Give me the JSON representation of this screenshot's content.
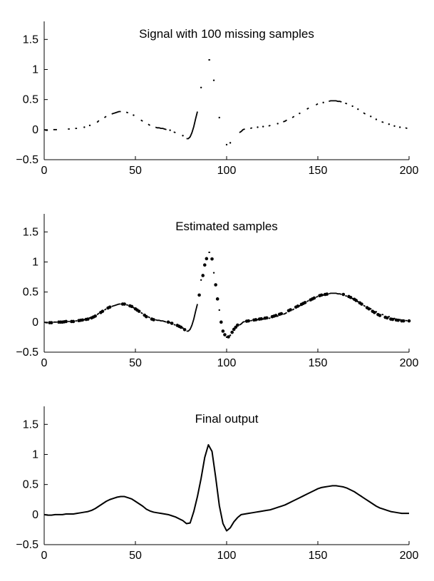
{
  "chart_data": [
    {
      "type": "line",
      "title": "Signal with 100 missing samples",
      "xlabel": "",
      "ylabel": "",
      "xlim": [
        0,
        200
      ],
      "ylim": [
        -0.5,
        1.8
      ],
      "x_ticks": [
        "0",
        "50",
        "100",
        "150",
        "200"
      ],
      "y_ticks": [
        "−0.5",
        "0",
        "0.5",
        "1",
        "1.5"
      ],
      "grid": false,
      "legend": "none",
      "series": [
        {
          "style": "segments",
          "segments": [
            [
              [
                0,
                0.0
              ],
              [
                1,
                -0.01
              ],
              [
                2,
                -0.01
              ]
            ],
            [
              [
                5,
                0.0
              ],
              [
                6,
                0.0
              ],
              [
                7,
                0.0
              ]
            ],
            [
              [
                13,
                0.01
              ],
              [
                14,
                0.01
              ]
            ],
            [
              [
                17,
                0.02
              ],
              [
                18,
                0.02
              ]
            ],
            [
              [
                22,
                0.04
              ]
            ],
            [
              [
                25,
                0.07
              ]
            ],
            [
              [
                29,
                0.12
              ],
              [
                30,
                0.15
              ]
            ],
            [
              [
                33,
                0.2
              ],
              [
                34,
                0.22
              ]
            ],
            [
              [
                37,
                0.26
              ],
              [
                38,
                0.27
              ],
              [
                39,
                0.28
              ],
              [
                40,
                0.29
              ],
              [
                41,
                0.3
              ],
              [
                42,
                0.3
              ]
            ],
            [
              [
                45,
                0.29
              ],
              [
                46,
                0.28
              ]
            ],
            [
              [
                49,
                0.24
              ]
            ],
            [
              [
                53,
                0.16
              ],
              [
                54,
                0.14
              ]
            ],
            [
              [
                57,
                0.09
              ],
              [
                58,
                0.07
              ]
            ],
            [
              [
                61,
                0.04
              ],
              [
                62,
                0.03
              ],
              [
                63,
                0.03
              ],
              [
                64,
                0.02
              ],
              [
                65,
                0.02
              ],
              [
                66,
                0.01
              ],
              [
                67,
                0.0
              ]
            ],
            [
              [
                69,
                -0.01
              ]
            ],
            [
              [
                71,
                -0.04
              ],
              [
                72,
                -0.05
              ]
            ],
            [
              [
                76,
                -0.1
              ]
            ],
            [
              [
                78,
                -0.15
              ],
              [
                79,
                -0.15
              ],
              [
                80,
                -0.12
              ],
              [
                81,
                -0.05
              ],
              [
                82,
                0.05
              ],
              [
                83,
                0.18
              ],
              [
                84,
                0.3
              ]
            ],
            [
              [
                86,
                0.7
              ]
            ],
            [
              [
                90,
                1.16
              ],
              [
                91,
                1.16
              ]
            ],
            [
              [
                93,
                0.82
              ]
            ],
            [
              [
                96,
                0.2
              ]
            ],
            [
              [
                100,
                -0.25
              ]
            ],
            [
              [
                102,
                -0.22
              ]
            ],
            [
              [
                107,
                -0.05
              ],
              [
                108,
                -0.03
              ],
              [
                109,
                0.0
              ],
              [
                110,
                0.01
              ]
            ],
            [
              [
                113,
                0.02
              ],
              [
                114,
                0.03
              ]
            ],
            [
              [
                117,
                0.04
              ]
            ],
            [
              [
                120,
                0.05
              ]
            ],
            [
              [
                123,
                0.06
              ],
              [
                124,
                0.07
              ]
            ],
            [
              [
                128,
                0.1
              ]
            ],
            [
              [
                131,
                0.13
              ],
              [
                132,
                0.14
              ],
              [
                133,
                0.16
              ]
            ],
            [
              [
                136,
                0.2
              ],
              [
                137,
                0.22
              ]
            ],
            [
              [
                140,
                0.27
              ]
            ],
            [
              [
                144,
                0.34
              ],
              [
                145,
                0.36
              ]
            ],
            [
              [
                149,
                0.41
              ],
              [
                150,
                0.43
              ]
            ],
            [
              [
                153,
                0.45
              ]
            ],
            [
              [
                156,
                0.47
              ],
              [
                157,
                0.48
              ],
              [
                158,
                0.48
              ],
              [
                159,
                0.48
              ],
              [
                160,
                0.48
              ],
              [
                161,
                0.47
              ],
              [
                162,
                0.47
              ],
              [
                163,
                0.46
              ]
            ],
            [
              [
                165,
                0.44
              ],
              [
                166,
                0.43
              ]
            ],
            [
              [
                169,
                0.39
              ]
            ],
            [
              [
                172,
                0.34
              ]
            ],
            [
              [
                175,
                0.28
              ],
              [
                176,
                0.26
              ]
            ],
            [
              [
                179,
                0.22
              ]
            ],
            [
              [
                182,
                0.17
              ]
            ],
            [
              [
                185,
                0.13
              ],
              [
                186,
                0.12
              ]
            ],
            [
              [
                189,
                0.09
              ]
            ],
            [
              [
                192,
                0.06
              ]
            ],
            [
              [
                195,
                0.04
              ]
            ],
            [
              [
                198,
                0.03
              ],
              [
                199,
                0.02
              ]
            ]
          ]
        }
      ]
    },
    {
      "type": "line",
      "title": "Estimated samples",
      "xlabel": "",
      "ylabel": "",
      "xlim": [
        0,
        200
      ],
      "ylim": [
        -0.5,
        1.8
      ],
      "x_ticks": [
        "0",
        "50",
        "100",
        "150",
        "200"
      ],
      "y_ticks": [
        "−0.5",
        "0",
        "0.5",
        "1",
        "1.5"
      ],
      "grid": false,
      "legend": "none",
      "series": [
        {
          "style": "segments-with-estimated-dots",
          "source_panel": 0
        }
      ]
    },
    {
      "type": "line",
      "title": "Final output",
      "xlabel": "",
      "ylabel": "",
      "xlim": [
        0,
        200
      ],
      "ylim": [
        -0.5,
        1.8
      ],
      "x_ticks": [
        "0",
        "50",
        "100",
        "150",
        "200"
      ],
      "y_ticks": [
        "−0.5",
        "0",
        "0.5",
        "1",
        "1.5"
      ],
      "grid": false,
      "legend": "none",
      "series": [
        {
          "style": "line",
          "x": [
            0,
            2,
            4,
            6,
            8,
            10,
            12,
            14,
            16,
            18,
            20,
            22,
            24,
            26,
            28,
            30,
            32,
            34,
            36,
            38,
            40,
            42,
            44,
            46,
            48,
            50,
            52,
            54,
            56,
            58,
            60,
            62,
            64,
            66,
            68,
            70,
            72,
            74,
            76,
            78,
            80,
            82,
            84,
            86,
            88,
            90,
            92,
            94,
            96,
            98,
            100,
            102,
            104,
            106,
            108,
            110,
            112,
            114,
            116,
            118,
            120,
            122,
            124,
            126,
            128,
            130,
            132,
            134,
            136,
            138,
            140,
            142,
            144,
            146,
            148,
            150,
            152,
            154,
            156,
            158,
            160,
            162,
            164,
            166,
            168,
            170,
            172,
            174,
            176,
            178,
            180,
            182,
            184,
            186,
            188,
            190,
            192,
            194,
            196,
            198,
            200
          ],
          "y": [
            0.0,
            -0.01,
            -0.01,
            0.0,
            0.0,
            0.0,
            0.01,
            0.01,
            0.01,
            0.02,
            0.03,
            0.04,
            0.05,
            0.07,
            0.1,
            0.14,
            0.18,
            0.22,
            0.25,
            0.27,
            0.29,
            0.3,
            0.3,
            0.28,
            0.26,
            0.22,
            0.18,
            0.14,
            0.09,
            0.06,
            0.04,
            0.03,
            0.02,
            0.01,
            0.0,
            -0.02,
            -0.04,
            -0.07,
            -0.1,
            -0.15,
            -0.14,
            0.05,
            0.3,
            0.6,
            0.95,
            1.16,
            1.05,
            0.62,
            0.15,
            -0.15,
            -0.27,
            -0.22,
            -0.12,
            -0.05,
            0.0,
            0.01,
            0.02,
            0.03,
            0.04,
            0.05,
            0.06,
            0.07,
            0.08,
            0.1,
            0.12,
            0.14,
            0.16,
            0.19,
            0.22,
            0.25,
            0.28,
            0.31,
            0.34,
            0.37,
            0.4,
            0.43,
            0.45,
            0.46,
            0.47,
            0.48,
            0.48,
            0.47,
            0.46,
            0.44,
            0.41,
            0.38,
            0.34,
            0.3,
            0.26,
            0.22,
            0.18,
            0.14,
            0.11,
            0.09,
            0.07,
            0.05,
            0.04,
            0.03,
            0.02,
            0.02,
            0.02
          ]
        }
      ]
    }
  ]
}
